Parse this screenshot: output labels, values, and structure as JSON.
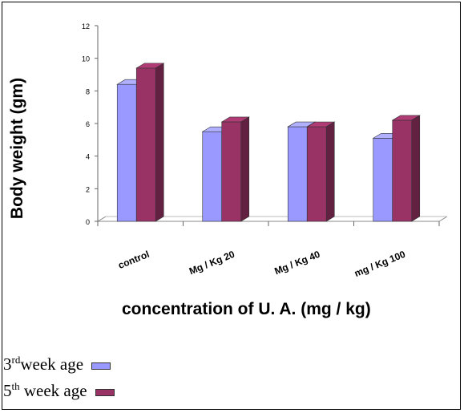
{
  "chart_data": {
    "type": "bar",
    "xlabel": "concentration of U. A. (mg / kg)",
    "ylabel": "Body weight (gm)",
    "ylim": [
      0,
      12
    ],
    "yticks": [
      "0",
      "2",
      "4",
      "6",
      "8",
      "10",
      "12"
    ],
    "categories": [
      "control",
      "Mg / Kg 20",
      "Mg / Kg 40",
      "mg / Kg 100"
    ],
    "series": [
      {
        "name": "3rd week age",
        "values": [
          8.4,
          5.5,
          5.8,
          5.1
        ]
      },
      {
        "name": "5th week age",
        "values": [
          9.4,
          6.1,
          5.8,
          6.2
        ]
      }
    ],
    "colors": [
      "#9999ff",
      "#993366"
    ],
    "grid": false,
    "legend_position": "bottom-left"
  },
  "legend": [
    {
      "base": "3",
      "sup": "rd",
      "text": "week age"
    },
    {
      "base": "5",
      "sup": "th",
      "text": " week age"
    }
  ]
}
